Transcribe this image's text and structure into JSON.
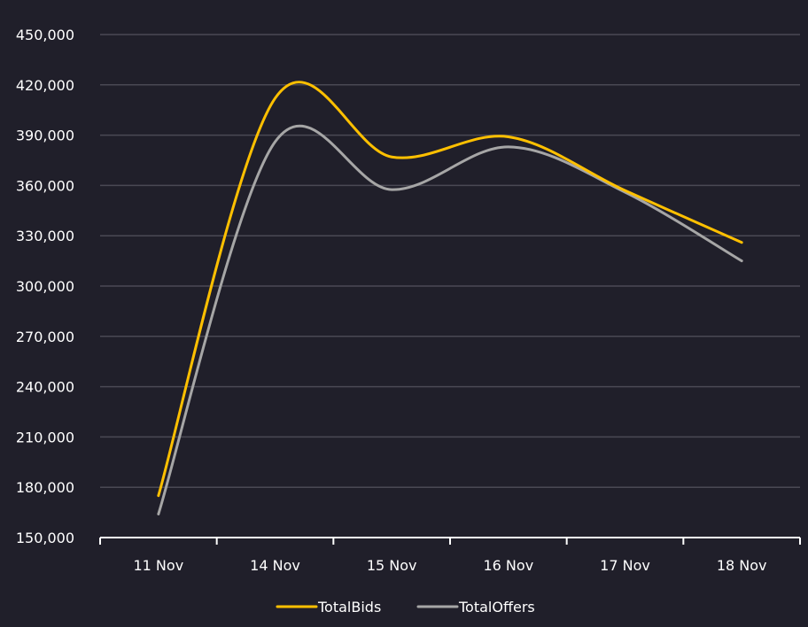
{
  "chart_data": {
    "type": "line",
    "title": "",
    "xlabel": "",
    "ylabel": "",
    "categories": [
      "11 Nov",
      "14 Nov",
      "15 Nov",
      "16 Nov",
      "17 Nov",
      "18 Nov"
    ],
    "ylim": [
      150000,
      450000
    ],
    "yticks": [
      150000,
      180000,
      210000,
      240000,
      270000,
      300000,
      330000,
      360000,
      390000,
      420000,
      450000
    ],
    "grid": true,
    "legend_position": "bottom",
    "series": [
      {
        "name": "TotalBids",
        "color": "#ffc000",
        "values": [
          175000,
          412000,
          377000,
          389000,
          357000,
          326000
        ]
      },
      {
        "name": "TotalOffers",
        "color": "#a6a6a6",
        "values": [
          164000,
          386000,
          357500,
          383000,
          356000,
          315000
        ]
      }
    ]
  }
}
